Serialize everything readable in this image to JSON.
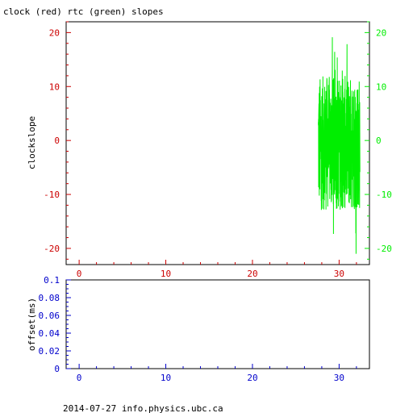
{
  "title": "clock (red) rtc (green) slopes",
  "footer": "2014-07-27 info.physics.ubc.ca",
  "colors": {
    "clock": "#cc0000",
    "rtc": "#00ee00",
    "offset": "#0000cc",
    "frame": "#000000"
  },
  "chart_data": [
    {
      "type": "line",
      "title": "clock (red) rtc (green) slopes",
      "ylabel": "clockslope",
      "xlim": [
        -1.5,
        33.5
      ],
      "ylim": [
        -23,
        22
      ],
      "xticks": [
        0,
        10,
        20,
        30
      ],
      "yticks": [
        20,
        10,
        0,
        -10,
        -20
      ],
      "y2ticks": [
        20,
        10,
        0,
        -10,
        -20
      ],
      "series": [
        {
          "color": "#00ee00",
          "x_start": 27.6,
          "x_end": 32.4,
          "y_min": -21.5,
          "y_max": 19.5,
          "typical_range": [
            -13,
            12
          ]
        }
      ]
    },
    {
      "type": "line",
      "ylabel": "offset(ms)",
      "xlim": [
        -1.5,
        33.5
      ],
      "ylim": [
        0,
        0.1
      ],
      "xticks": [
        0,
        10,
        20,
        30
      ],
      "yticks": [
        "0",
        "0.02",
        "0.04",
        "0.06",
        "0.08",
        "0.1"
      ],
      "series": []
    }
  ]
}
